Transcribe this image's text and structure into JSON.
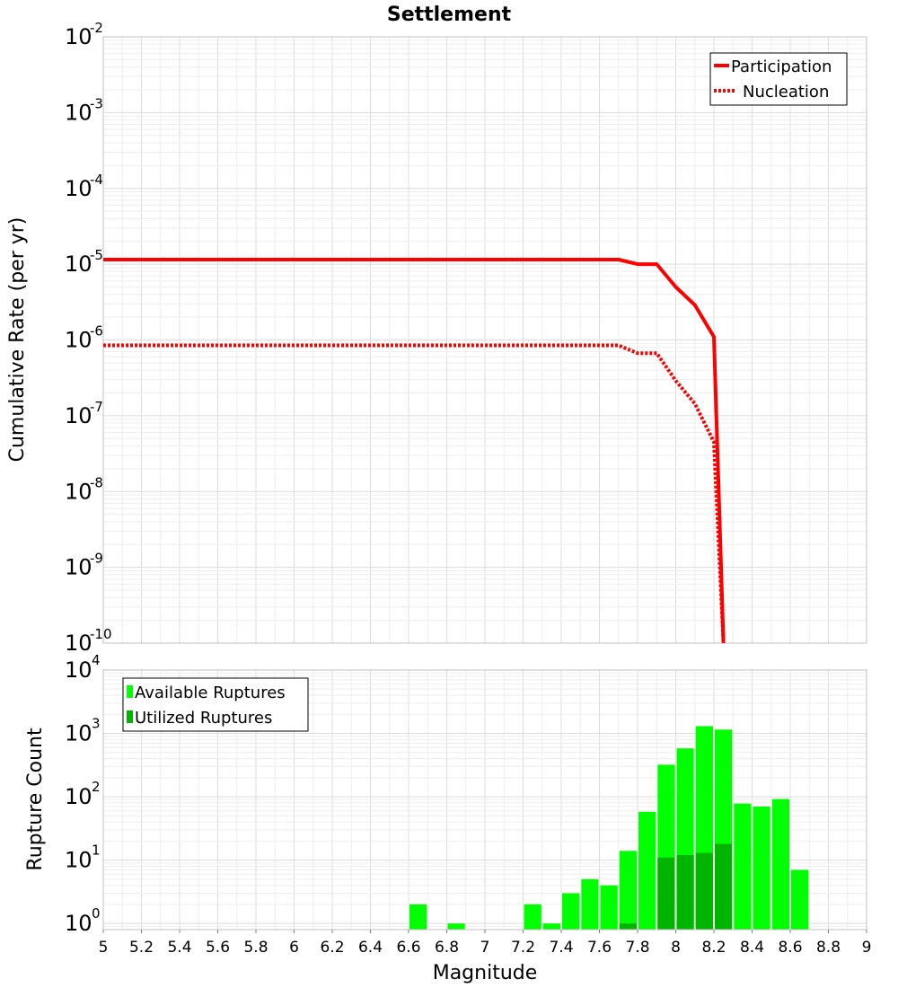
{
  "chart_title": "Settlement",
  "colors": {
    "participation": "#ff0000",
    "nucleation": "#ff0000",
    "available": "#00ff00",
    "utilized": "#00b400",
    "grid_major": "#dcdcdc",
    "grid_minor": "#eeeeee",
    "frame": "#c0c0c0"
  },
  "chart_data": [
    {
      "type": "line",
      "title": "Settlement",
      "xlabel": "Magnitude",
      "ylabel": "Cumulative Rate (per yr)",
      "xlim": [
        5,
        9
      ],
      "ylim": [
        1e-10,
        0.01
      ],
      "yscale": "log",
      "grid": true,
      "legend_position": "top-right",
      "yticks": [
        {
          "base": "10",
          "exp": "-2",
          "value": 0.01
        },
        {
          "base": "10",
          "exp": "-3",
          "value": 0.001
        },
        {
          "base": "10",
          "exp": "-4",
          "value": 0.0001
        },
        {
          "base": "10",
          "exp": "-5",
          "value": 1e-05
        },
        {
          "base": "10",
          "exp": "-6",
          "value": 1e-06
        },
        {
          "base": "10",
          "exp": "-7",
          "value": 1e-07
        },
        {
          "base": "10",
          "exp": "-8",
          "value": 1e-08
        },
        {
          "base": "10",
          "exp": "-9",
          "value": 1e-09
        },
        {
          "base": "10",
          "exp": "-10",
          "value": 1e-10
        }
      ],
      "series": [
        {
          "name": "Participation",
          "style": "solid",
          "x": [
            5.0,
            7.7,
            7.8,
            7.9,
            8.0,
            8.1,
            8.2,
            8.25
          ],
          "y": [
            1.15e-05,
            1.15e-05,
            1e-05,
            1e-05,
            5e-06,
            2.9e-06,
            1.1e-06,
            1e-10
          ]
        },
        {
          "name": "Nucleation",
          "style": "dotted",
          "x": [
            5.0,
            7.7,
            7.8,
            7.9,
            8.0,
            8.1,
            8.2,
            8.25
          ],
          "y": [
            8.5e-07,
            8.5e-07,
            6.7e-07,
            6.7e-07,
            2.9e-07,
            1.45e-07,
            4.5e-08,
            1e-10
          ]
        }
      ]
    },
    {
      "type": "bar",
      "xlabel": "Magnitude",
      "ylabel": "Rupture Count",
      "xlim": [
        5,
        9
      ],
      "ylim": [
        0.8,
        10000
      ],
      "yscale": "log",
      "grid": true,
      "legend_position": "top-left",
      "bin_width": 0.1,
      "yticks": [
        {
          "base": "10",
          "exp": "4",
          "value": 10000
        },
        {
          "base": "10",
          "exp": "3",
          "value": 1000
        },
        {
          "base": "10",
          "exp": "2",
          "value": 100
        },
        {
          "base": "10",
          "exp": "1",
          "value": 10
        },
        {
          "base": "10",
          "exp": "0",
          "value": 1
        }
      ],
      "x_tick_labels": [
        "5",
        "5.2",
        "5.4",
        "5.6",
        "5.8",
        "6",
        "6.2",
        "6.4",
        "6.6",
        "6.8",
        "7",
        "7.2",
        "7.4",
        "7.6",
        "7.8",
        "8",
        "8.2",
        "8.4",
        "8.6",
        "8.8",
        "9"
      ],
      "series": [
        {
          "name": "Available Ruptures",
          "bins": [
            6.6,
            6.8,
            7.2,
            7.3,
            7.4,
            7.5,
            7.6,
            7.7,
            7.8,
            7.9,
            8.0,
            8.1,
            8.2,
            8.3,
            8.4,
            8.5,
            8.6
          ],
          "values": [
            2,
            1,
            2,
            1,
            3,
            5,
            4,
            14,
            58,
            320,
            580,
            1300,
            1150,
            78,
            70,
            92,
            7
          ]
        },
        {
          "name": "Utilized Ruptures",
          "bins": [
            7.7,
            7.9,
            8.0,
            8.1,
            8.2
          ],
          "values": [
            1,
            11,
            12,
            13,
            18
          ]
        }
      ]
    }
  ]
}
